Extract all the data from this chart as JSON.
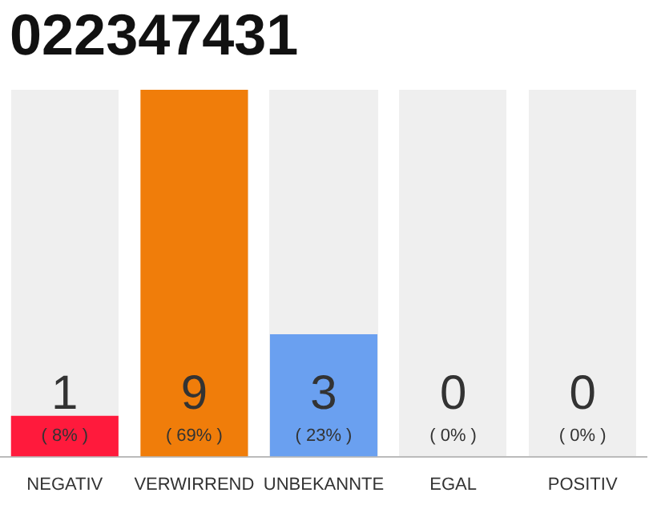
{
  "chart_data": {
    "type": "bar",
    "title": "022347431",
    "categories": [
      "NEGATIV",
      "VERWIRREND",
      "UNBEKANNTE",
      "EGAL",
      "POSITIV"
    ],
    "values": [
      1,
      9,
      3,
      0,
      0
    ],
    "colors": [
      "#ff1a3c",
      "#f07d0a",
      "#6aa0f0",
      "#bdbdbd",
      "#bdbdbd"
    ],
    "ylim": [
      0,
      9
    ],
    "tick_labels": "x",
    "data_labels": true,
    "annotations": [
      "( 8% )",
      "( 69% )",
      "( 23% )",
      "( 0% )",
      "( 0% )"
    ]
  }
}
